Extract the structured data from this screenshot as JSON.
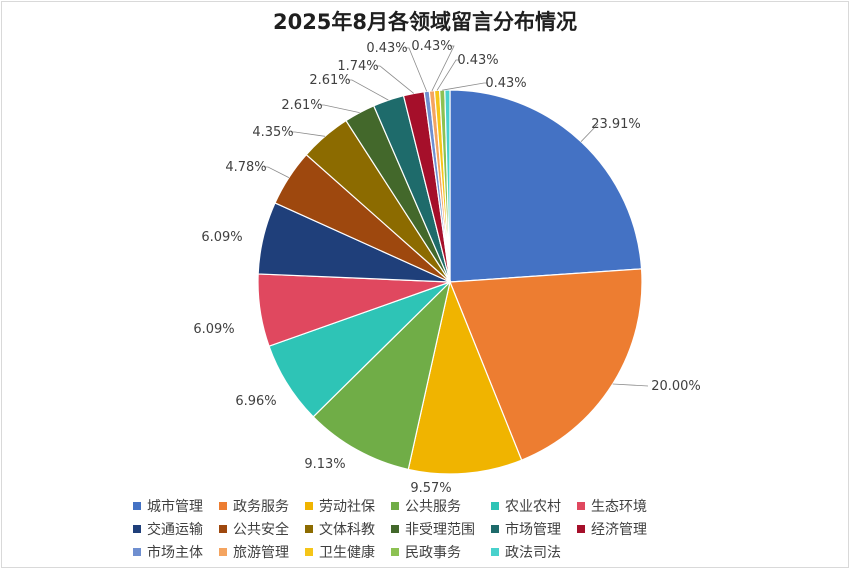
{
  "chart_data": {
    "type": "pie",
    "title": "2025年8月各领域留言分布情况",
    "categories": [
      "城市管理",
      "政务服务",
      "劳动社保",
      "公共服务",
      "农业农村",
      "生态环境",
      "交通运输",
      "公共安全",
      "文体科教",
      "非受理范围",
      "市场管理",
      "经济管理",
      "市场主体",
      "旅游管理",
      "卫生健康",
      "民政事务",
      "政法司法"
    ],
    "values": [
      23.91,
      20.0,
      9.57,
      9.13,
      6.96,
      6.09,
      6.09,
      4.78,
      4.35,
      2.61,
      2.61,
      1.74,
      0.43,
      0.43,
      0.43,
      0.43,
      0.43
    ],
    "data_labels": [
      "23.91%",
      "20.00%",
      "9.57%",
      "9.13%",
      "6.96%",
      "6.09%",
      "6.09%",
      "4.78%",
      "4.35%",
      "2.61%",
      "2.61%",
      "1.74%",
      "0.43%",
      "0.43%",
      "0.43%",
      "0.43%",
      "0.43%"
    ],
    "colors": [
      "#4472c4",
      "#ed7d31",
      "#f0b400",
      "#70ad47",
      "#2ec4b6",
      "#e0485f",
      "#1f3f7a",
      "#9e480e",
      "#8c6b00",
      "#43682b",
      "#1e6b6b",
      "#a50f2a",
      "#6f8fd0",
      "#f4a460",
      "#f5c518",
      "#8cc152",
      "#48d1cc"
    ],
    "legend_position": "bottom",
    "start_angle_deg": 0,
    "direction": "clockwise"
  }
}
